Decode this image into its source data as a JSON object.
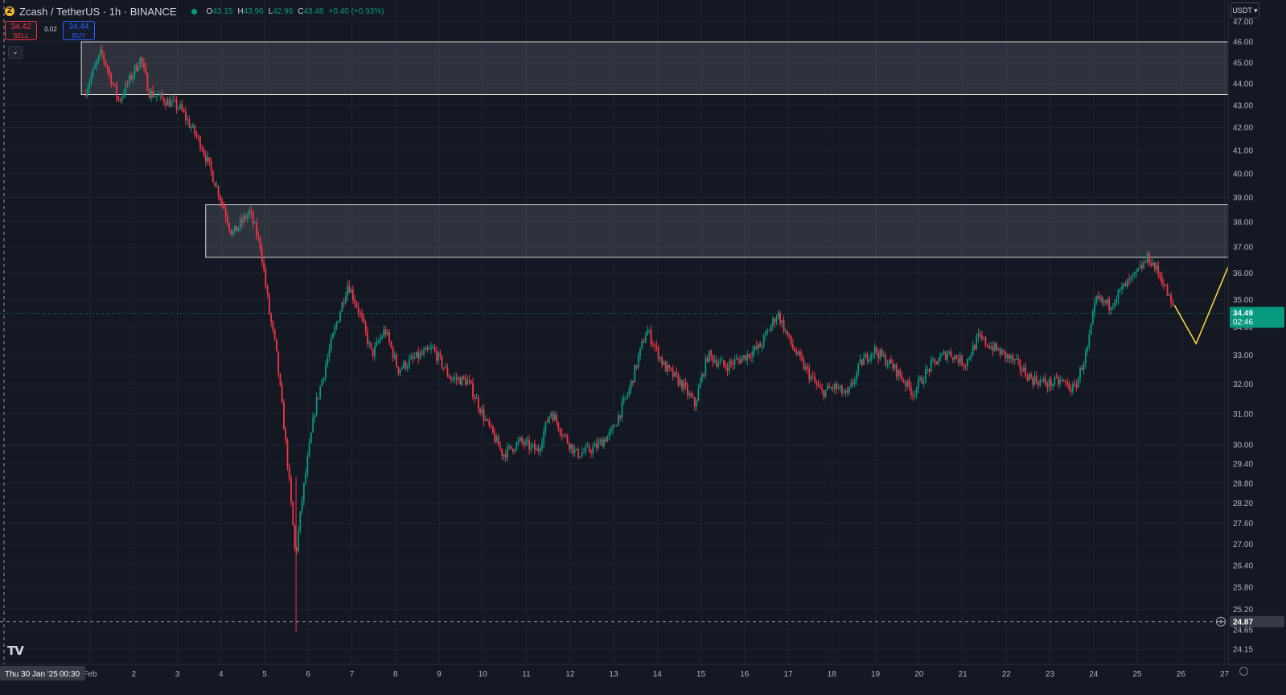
{
  "legend": {
    "coin_icon": "zcash-icon",
    "title": "Zcash / TetherUS · 1h · BINANCE",
    "live_status_color": "#089981",
    "open_label": "O",
    "open": "43.15",
    "high_label": "H",
    "high": "43.96",
    "low_label": "L",
    "low": "42.96",
    "close_label": "C",
    "close": "43.48",
    "change": "+0.40 (+0.93%)"
  },
  "trade": {
    "sell_price": "34.42",
    "sell_label": "SELL",
    "spread": "0.02",
    "buy_price": "34.44",
    "buy_label": "BUY"
  },
  "currency_button": "USDT",
  "colors": {
    "up": "#089981",
    "down": "#f23645",
    "projection": "#f2d23b",
    "zone_border": "#d9d9d9"
  },
  "chart_data": {
    "type": "candlestick",
    "symbol": "Zcash / TetherUS",
    "interval": "1h",
    "exchange": "BINANCE",
    "price_axis_scale": "log",
    "y_ticks": [
      "47.00",
      "46.00",
      "45.00",
      "44.00",
      "43.00",
      "42.00",
      "41.00",
      "40.00",
      "39.00",
      "38.00",
      "37.00",
      "36.00",
      "35.00",
      "34.00",
      "33.00",
      "32.00",
      "31.00",
      "30.00",
      "29.40",
      "28.80",
      "28.20",
      "27.60",
      "27.00",
      "26.40",
      "25.80",
      "25.20",
      "24.65",
      "24.15"
    ],
    "x_ticks": [
      {
        "label": "Feb",
        "day": 1
      },
      {
        "label": "2",
        "day": 2
      },
      {
        "label": "3",
        "day": 3
      },
      {
        "label": "4",
        "day": 4
      },
      {
        "label": "5",
        "day": 5
      },
      {
        "label": "6",
        "day": 6
      },
      {
        "label": "7",
        "day": 7
      },
      {
        "label": "8",
        "day": 8
      },
      {
        "label": "9",
        "day": 9
      },
      {
        "label": "10",
        "day": 10
      },
      {
        "label": "11",
        "day": 11
      },
      {
        "label": "12",
        "day": 12
      },
      {
        "label": "13",
        "day": 13
      },
      {
        "label": "14",
        "day": 14
      },
      {
        "label": "15",
        "day": 15
      },
      {
        "label": "16",
        "day": 16
      },
      {
        "label": "17",
        "day": 17
      },
      {
        "label": "18",
        "day": 18
      },
      {
        "label": "19",
        "day": 19
      },
      {
        "label": "20",
        "day": 20
      },
      {
        "label": "21",
        "day": 21
      },
      {
        "label": "22",
        "day": 22
      },
      {
        "label": "23",
        "day": 23
      },
      {
        "label": "24",
        "day": 24
      },
      {
        "label": "25",
        "day": 25
      },
      {
        "label": "26",
        "day": 26
      },
      {
        "label": "27",
        "day": 27
      }
    ],
    "crosshair_date_label": "Thu 30 Jan '25",
    "crosshair_time_label": "00:30",
    "current_price": "34.49",
    "current_countdown": "02:46",
    "crosshair_price": "24.87",
    "price_path": [
      [
        0.9,
        43.5
      ],
      [
        1.3,
        45.5
      ],
      [
        1.7,
        43.2
      ],
      [
        2.2,
        45.2
      ],
      [
        2.4,
        43.6
      ],
      [
        3.1,
        42.9
      ],
      [
        3.6,
        41.2
      ],
      [
        4.1,
        38.6
      ],
      [
        4.3,
        37.5
      ],
      [
        4.7,
        38.4
      ],
      [
        4.95,
        37.0
      ],
      [
        5.15,
        34.5
      ],
      [
        5.3,
        33.2
      ],
      [
        5.55,
        29.7
      ],
      [
        5.75,
        26.6
      ],
      [
        5.9,
        28.3
      ],
      [
        6.2,
        31.2
      ],
      [
        6.6,
        33.6
      ],
      [
        6.95,
        35.6
      ],
      [
        7.2,
        34.6
      ],
      [
        7.5,
        33.0
      ],
      [
        7.8,
        33.9
      ],
      [
        8.1,
        32.5
      ],
      [
        8.5,
        32.9
      ],
      [
        8.9,
        33.2
      ],
      [
        9.3,
        32.2
      ],
      [
        9.7,
        32.1
      ],
      [
        10.1,
        30.8
      ],
      [
        10.5,
        29.7
      ],
      [
        10.9,
        30.1
      ],
      [
        11.3,
        29.8
      ],
      [
        11.6,
        31.1
      ],
      [
        11.9,
        30.3
      ],
      [
        12.2,
        29.7
      ],
      [
        12.6,
        29.9
      ],
      [
        13.0,
        30.4
      ],
      [
        13.4,
        31.8
      ],
      [
        13.8,
        33.9
      ],
      [
        14.2,
        32.6
      ],
      [
        14.6,
        32.0
      ],
      [
        14.9,
        31.3
      ],
      [
        15.2,
        33.0
      ],
      [
        15.6,
        32.6
      ],
      [
        16.0,
        32.9
      ],
      [
        16.4,
        33.3
      ],
      [
        16.8,
        34.5
      ],
      [
        17.1,
        33.4
      ],
      [
        17.4,
        32.6
      ],
      [
        17.8,
        31.7
      ],
      [
        18.1,
        31.9
      ],
      [
        18.4,
        31.6
      ],
      [
        18.7,
        32.7
      ],
      [
        19.0,
        33.2
      ],
      [
        19.5,
        32.5
      ],
      [
        19.9,
        31.7
      ],
      [
        20.3,
        32.6
      ],
      [
        20.7,
        33.1
      ],
      [
        21.1,
        32.7
      ],
      [
        21.4,
        33.6
      ],
      [
        21.8,
        33.2
      ],
      [
        22.2,
        32.8
      ],
      [
        22.6,
        32.2
      ],
      [
        23.0,
        32.0
      ],
      [
        23.3,
        32.1
      ],
      [
        23.6,
        31.8
      ],
      [
        23.9,
        33.2
      ],
      [
        24.1,
        35.0
      ],
      [
        24.4,
        34.8
      ],
      [
        24.7,
        35.4
      ],
      [
        25.0,
        35.9
      ],
      [
        25.3,
        36.6
      ],
      [
        25.6,
        35.8
      ],
      [
        25.85,
        34.7
      ]
    ],
    "zones": [
      {
        "name": "upper-resistance-zone",
        "from_day": 0.8,
        "to_day": 27.1,
        "low": 43.5,
        "high": 46.0
      },
      {
        "name": "lower-resistance-zone",
        "from_day": 3.65,
        "to_day": 27.1,
        "low": 36.6,
        "high": 38.7
      }
    ],
    "projection": {
      "color": "#f2d23b",
      "points": [
        [
          25.85,
          34.8
        ],
        [
          26.35,
          33.4
        ],
        [
          27.1,
          36.3
        ],
        [
          28.1,
          29.1
        ]
      ]
    }
  }
}
